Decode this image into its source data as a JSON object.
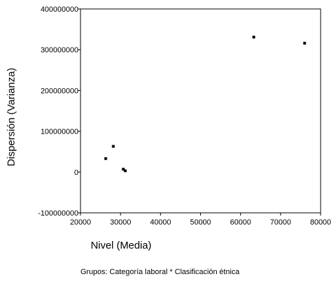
{
  "chart_data": {
    "type": "scatter",
    "title": "",
    "xlabel": "Nivel (Media)",
    "ylabel": "Dispersión (Varianza)",
    "footnote": "Grupos: Categoría laboral * Clasificación étnica",
    "xlim": [
      20000,
      80000
    ],
    "ylim": [
      -100000000,
      400000000
    ],
    "x_ticks": [
      20000,
      30000,
      40000,
      50000,
      60000,
      70000,
      80000
    ],
    "x_tick_labels": [
      "20000",
      "30000",
      "40000",
      "50000",
      "60000",
      "70000",
      "80000"
    ],
    "y_ticks": [
      -100000000,
      0,
      100000000,
      200000000,
      300000000,
      400000000
    ],
    "y_tick_labels": [
      "-100000000",
      "0",
      "100000000",
      "200000000",
      "300000000",
      "400000000"
    ],
    "grid": false,
    "marker_color": "#000000",
    "points": [
      {
        "x": 26300,
        "y": 33000000
      },
      {
        "x": 28200,
        "y": 63000000
      },
      {
        "x": 30700,
        "y": 7000000
      },
      {
        "x": 31200,
        "y": 3000000
      },
      {
        "x": 63300,
        "y": 331000000
      },
      {
        "x": 76000,
        "y": 316000000
      }
    ]
  }
}
